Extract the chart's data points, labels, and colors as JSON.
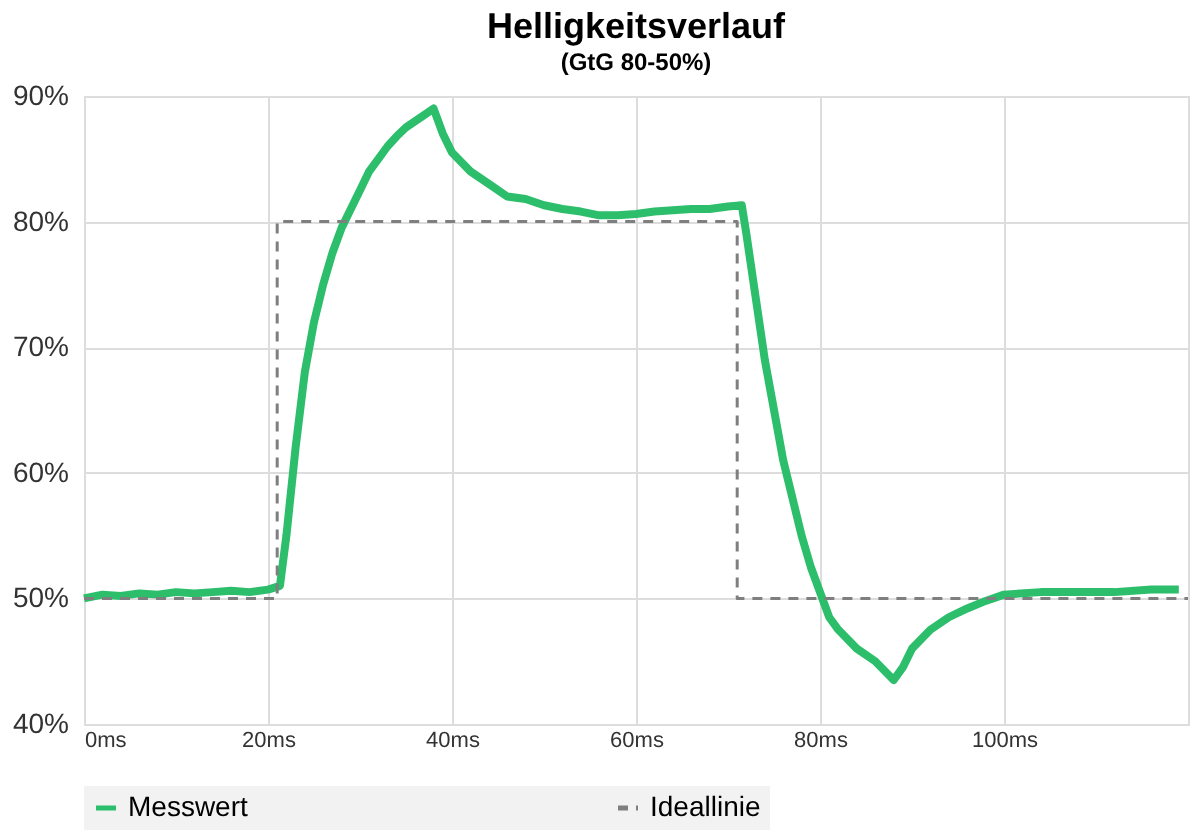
{
  "chart_data": {
    "type": "line",
    "title": "Helligkeitsverlauf",
    "subtitle": "(GtG 80-50%)",
    "xlim": [
      0,
      120
    ],
    "ylim": [
      40,
      90
    ],
    "xticks": [
      {
        "value": 0,
        "label": "0ms"
      },
      {
        "value": 20,
        "label": "20ms"
      },
      {
        "value": 40,
        "label": "40ms"
      },
      {
        "value": 60,
        "label": "60ms"
      },
      {
        "value": 80,
        "label": "80ms"
      },
      {
        "value": 100,
        "label": "100ms"
      }
    ],
    "yticks": [
      {
        "value": 40,
        "label": "40%"
      },
      {
        "value": 50,
        "label": "50%"
      },
      {
        "value": 60,
        "label": "60%"
      },
      {
        "value": 70,
        "label": "70%"
      },
      {
        "value": 80,
        "label": "80%"
      },
      {
        "value": 90,
        "label": "90%"
      }
    ],
    "grid": true,
    "legend": "bottom",
    "marker": "none",
    "series": [
      {
        "name": "Messwert",
        "color": "#2dbe6c",
        "line_style": "solid",
        "x": [
          0,
          2,
          4,
          6,
          8,
          10,
          12,
          14,
          16,
          18,
          20,
          21.3,
          22,
          23,
          24,
          25,
          26,
          27,
          28,
          29,
          30,
          31,
          32,
          33,
          34,
          35,
          36,
          37,
          38,
          39,
          40,
          42,
          44,
          46,
          48,
          50,
          52,
          54,
          56,
          58,
          60,
          62,
          64,
          66,
          68,
          70,
          71.5,
          72,
          73,
          74,
          75,
          76,
          77,
          78,
          79,
          80,
          81,
          82,
          84,
          86,
          88,
          89,
          90,
          92,
          94,
          96,
          98,
          100,
          104,
          108,
          112,
          116,
          119
        ],
        "values": [
          50,
          50.3,
          50.2,
          50.4,
          50.3,
          50.5,
          50.4,
          50.5,
          50.6,
          50.5,
          50.7,
          51,
          55,
          62,
          68,
          72,
          75,
          77.5,
          79.5,
          81,
          82.5,
          84,
          85,
          86,
          86.8,
          87.5,
          88,
          88.5,
          89,
          87,
          85.5,
          84,
          83,
          82,
          81.8,
          81.3,
          81,
          80.8,
          80.5,
          80.5,
          80.6,
          80.8,
          80.9,
          81,
          81,
          81.2,
          81.3,
          79,
          74,
          69,
          65,
          61,
          58,
          55,
          52.5,
          50.5,
          48.5,
          47.5,
          46,
          45,
          43.5,
          44.5,
          46,
          47.5,
          48.5,
          49.2,
          49.8,
          50.3,
          50.5,
          50.5,
          50.5,
          50.7,
          50.7
        ]
      },
      {
        "name": "Ideallinie",
        "color": "#7f7f7f",
        "line_style": "dashed",
        "x": [
          0,
          21,
          21,
          71,
          71,
          120
        ],
        "values": [
          50,
          50,
          80,
          80,
          50,
          50
        ]
      }
    ]
  }
}
